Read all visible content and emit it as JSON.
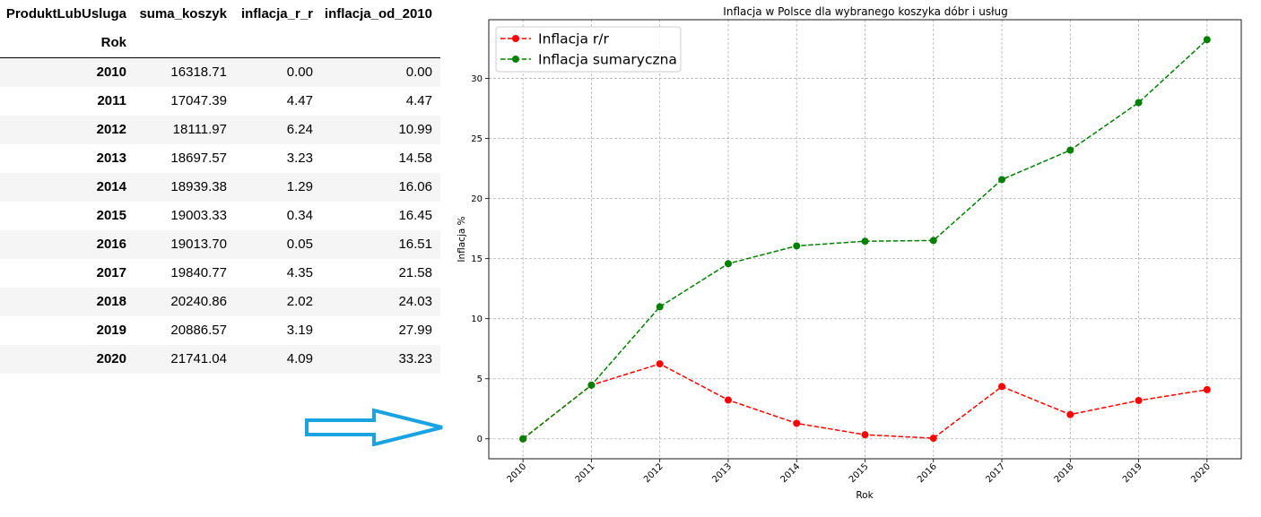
{
  "table": {
    "columns": [
      "ProduktLubUsluga",
      "suma_koszyk",
      "inflacja_r_r",
      "inflacja_od_2010"
    ],
    "index_name": "Rok",
    "rows": [
      {
        "rok": "2010",
        "suma_koszyk": "16318.71",
        "inflacja_r_r": "0.00",
        "inflacja_od_2010": "0.00"
      },
      {
        "rok": "2011",
        "suma_koszyk": "17047.39",
        "inflacja_r_r": "4.47",
        "inflacja_od_2010": "4.47"
      },
      {
        "rok": "2012",
        "suma_koszyk": "18111.97",
        "inflacja_r_r": "6.24",
        "inflacja_od_2010": "10.99"
      },
      {
        "rok": "2013",
        "suma_koszyk": "18697.57",
        "inflacja_r_r": "3.23",
        "inflacja_od_2010": "14.58"
      },
      {
        "rok": "2014",
        "suma_koszyk": "18939.38",
        "inflacja_r_r": "1.29",
        "inflacja_od_2010": "16.06"
      },
      {
        "rok": "2015",
        "suma_koszyk": "19003.33",
        "inflacja_r_r": "0.34",
        "inflacja_od_2010": "16.45"
      },
      {
        "rok": "2016",
        "suma_koszyk": "19013.70",
        "inflacja_r_r": "0.05",
        "inflacja_od_2010": "16.51"
      },
      {
        "rok": "2017",
        "suma_koszyk": "19840.77",
        "inflacja_r_r": "4.35",
        "inflacja_od_2010": "21.58"
      },
      {
        "rok": "2018",
        "suma_koszyk": "20240.86",
        "inflacja_r_r": "2.02",
        "inflacja_od_2010": "24.03"
      },
      {
        "rok": "2019",
        "suma_koszyk": "20886.57",
        "inflacja_r_r": "3.19",
        "inflacja_od_2010": "27.99"
      },
      {
        "rok": "2020",
        "suma_koszyk": "21741.04",
        "inflacja_r_r": "4.09",
        "inflacja_od_2010": "33.23"
      }
    ]
  },
  "arrow": {
    "icon": "right-arrow-icon",
    "color": "#1aa3e0"
  },
  "chart_data": {
    "type": "line",
    "title": "Inflacja w Polsce dla wybranego koszyka dóbr i usług",
    "xlabel": "Rok",
    "ylabel": "Inflacja %",
    "x": [
      "2010",
      "2011",
      "2012",
      "2013",
      "2014",
      "2015",
      "2016",
      "2017",
      "2018",
      "2019",
      "2020"
    ],
    "ylim": [
      -1.66,
      34.89
    ],
    "yticks": [
      "0",
      "5",
      "10",
      "15",
      "20",
      "25",
      "30"
    ],
    "grid": true,
    "legend_position": "top-left",
    "series": [
      {
        "name": "Inflacja r/r",
        "color": "#ff0000",
        "style": "dashed",
        "marker": "circle",
        "values": [
          0.0,
          4.47,
          6.24,
          3.23,
          1.29,
          0.34,
          0.05,
          4.35,
          2.02,
          3.19,
          4.09
        ]
      },
      {
        "name": "Inflacja sumaryczna",
        "color": "#008000",
        "style": "dashed",
        "marker": "circle",
        "values": [
          0.0,
          4.47,
          10.99,
          14.58,
          16.06,
          16.45,
          16.51,
          21.58,
          24.03,
          27.99,
          33.23
        ]
      }
    ]
  }
}
